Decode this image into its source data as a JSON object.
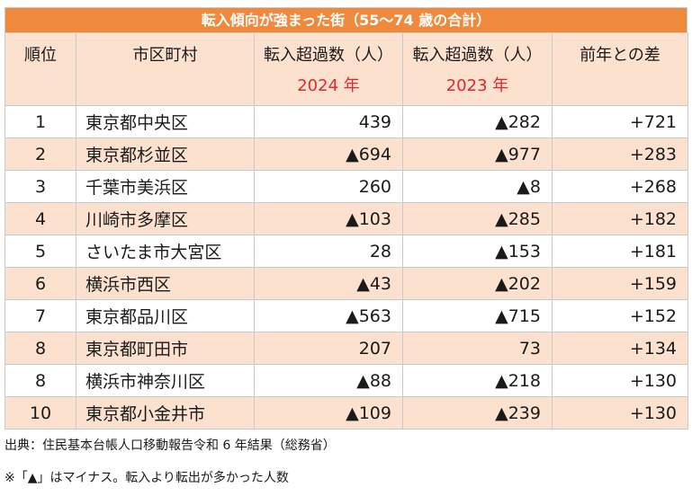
{
  "title": "転入傾向が強まった街（55～74 歳の合計）",
  "headers": {
    "rank": "順位",
    "city": "市区町村",
    "col2024": "転入超過数（人）",
    "col2024_year": "2024 年",
    "col2023": "転入超過数（人）",
    "col2023_year": "2023 年",
    "diff": "前年との差"
  },
  "rows": [
    {
      "rank": "1",
      "city": "東京都中央区",
      "v2024": "439",
      "v2023": "▲282",
      "diff": "+721"
    },
    {
      "rank": "2",
      "city": "東京都杉並区",
      "v2024": "▲694",
      "v2023": "▲977",
      "diff": "+283"
    },
    {
      "rank": "3",
      "city": "千葉市美浜区",
      "v2024": "260",
      "v2023": "▲8",
      "diff": "+268"
    },
    {
      "rank": "4",
      "city": "川崎市多摩区",
      "v2024": "▲103",
      "v2023": "▲285",
      "diff": "+182"
    },
    {
      "rank": "5",
      "city": "さいたま市大宮区",
      "v2024": "28",
      "v2023": "▲153",
      "diff": "+181"
    },
    {
      "rank": "6",
      "city": "横浜市西区",
      "v2024": "▲43",
      "v2023": "▲202",
      "diff": "+159"
    },
    {
      "rank": "7",
      "city": "東京都品川区",
      "v2024": "▲563",
      "v2023": "▲715",
      "diff": "+152"
    },
    {
      "rank": "8",
      "city": "東京都町田市",
      "v2024": "207",
      "v2023": "73",
      "diff": "+134"
    },
    {
      "rank": "8",
      "city": "横浜市神奈川区",
      "v2024": "▲88",
      "v2023": "▲218",
      "diff": "+130"
    },
    {
      "rank": "10",
      "city": "東京都小金井市",
      "v2024": "▲109",
      "v2023": "▲239",
      "diff": "+130"
    }
  ],
  "footer": {
    "source": "出典：住民基本台帳人口移動報告令和 6 年結果（総務省）",
    "note": "※「▲」はマイナス。転入より転出が多かった人数"
  },
  "colors": {
    "title_bg": "#ef8a3c",
    "stripe_bg": "#fbe1ce",
    "year_text": "#e0282e"
  }
}
